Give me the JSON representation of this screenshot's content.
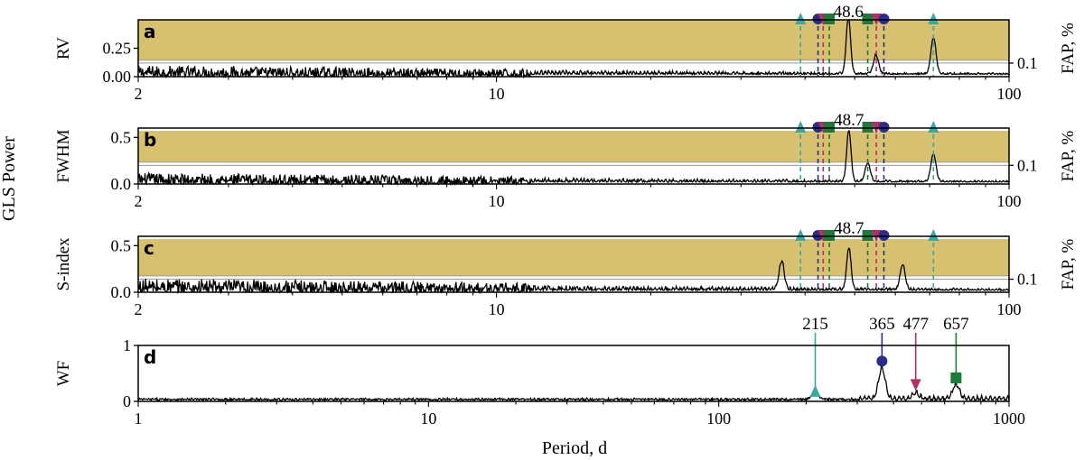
{
  "chart_data": {
    "type": "line",
    "xlabel": "Period, d",
    "ylabel_shared": "GLS Power",
    "colors": {
      "fap_band": "#d8c071",
      "fap_line": "#9a9a9a",
      "series": "#000000",
      "teal": "#3aa99e",
      "navy": "#2b2b8c",
      "crimson": "#b03163",
      "green": "#1e7a3a"
    },
    "marker_shapes": {
      "teal": "triangle-up",
      "navy": "circle",
      "crimson": "triangle-down",
      "green": "square"
    },
    "panels": [
      {
        "id": "a",
        "letter": "a",
        "ylabel": "RV",
        "xscale": "log",
        "xlim": [
          2,
          100
        ],
        "ylim": [
          0,
          0.5
        ],
        "yticks": [
          0.0,
          0.25
        ],
        "ytick_labels": [
          "0.00",
          "0.25"
        ],
        "xticks": [
          2,
          10,
          100
        ],
        "xtick_labels": [
          "2",
          "10",
          "100"
        ],
        "right_label": "FAP, %",
        "right_tick_label": "0.1",
        "fap_levels": [
          0.12,
          0.145
        ],
        "fap_band_top": 0.5,
        "peak_label": "48.6",
        "peak_period": 48.6,
        "peak_power": 0.5,
        "secondary_peaks": [
          {
            "period": 71.2,
            "power": 0.32
          },
          {
            "period": 55.0,
            "power": 0.16
          }
        ],
        "alias_lines": [
          {
            "color": "teal",
            "marker": "triangle-up",
            "period": 39.2
          },
          {
            "color": "navy",
            "marker": "circle",
            "period": 42.4
          },
          {
            "color": "crimson",
            "marker": "triangle-down",
            "period": 43.4
          },
          {
            "color": "green",
            "marker": "square",
            "period": 44.6
          },
          {
            "color": "green",
            "marker": "square",
            "period": 53.0
          },
          {
            "color": "crimson",
            "marker": "triangle-down",
            "period": 55.1
          },
          {
            "color": "navy",
            "marker": "circle",
            "period": 57.0
          },
          {
            "color": "teal",
            "marker": "triangle-up",
            "period": 71.2
          }
        ],
        "short_noise_level": 0.1
      },
      {
        "id": "b",
        "letter": "b",
        "ylabel": "FWHM",
        "xscale": "log",
        "xlim": [
          2,
          100
        ],
        "ylim": [
          0,
          0.6
        ],
        "yticks": [
          0.0,
          0.5
        ],
        "ytick_labels": [
          "0.0",
          "0.5"
        ],
        "xticks": [
          2,
          10,
          100
        ],
        "xtick_labels": [
          "2",
          "10",
          "100"
        ],
        "right_label": "FAP, %",
        "right_tick_label": "0.1",
        "fap_levels": [
          0.2,
          0.235
        ],
        "fap_band_top": 0.57,
        "peak_label": "48.7",
        "peak_period": 48.7,
        "peak_power": 0.55,
        "secondary_peaks": [
          {
            "period": 71.2,
            "power": 0.3
          },
          {
            "period": 53.0,
            "power": 0.2
          }
        ],
        "alias_lines": [
          {
            "color": "teal",
            "marker": "triangle-up",
            "period": 39.2
          },
          {
            "color": "navy",
            "marker": "circle",
            "period": 42.4
          },
          {
            "color": "crimson",
            "marker": "triangle-down",
            "period": 43.4
          },
          {
            "color": "green",
            "marker": "square",
            "period": 44.6
          },
          {
            "color": "green",
            "marker": "square",
            "period": 53.0
          },
          {
            "color": "crimson",
            "marker": "triangle-down",
            "period": 55.1
          },
          {
            "color": "navy",
            "marker": "circle",
            "period": 57.0
          },
          {
            "color": "teal",
            "marker": "triangle-up",
            "period": 71.2
          }
        ],
        "short_noise_level": 0.12
      },
      {
        "id": "c",
        "letter": "c",
        "ylabel": "S-index",
        "xscale": "log",
        "xlim": [
          2,
          100
        ],
        "ylim": [
          0,
          0.6
        ],
        "yticks": [
          0.0,
          0.5
        ],
        "ytick_labels": [
          "0.0",
          "0.5"
        ],
        "xticks": [
          2,
          10,
          100
        ],
        "xtick_labels": [
          "2",
          "10",
          "100"
        ],
        "right_label": "FAP, %",
        "right_tick_label": "0.1",
        "fap_levels": [
          0.14,
          0.175
        ],
        "fap_band_top": 0.57,
        "peak_label": "48.7",
        "peak_period": 48.7,
        "peak_power": 0.45,
        "secondary_peaks": [
          {
            "period": 36.0,
            "power": 0.3
          },
          {
            "period": 62.0,
            "power": 0.27
          }
        ],
        "alias_lines": [
          {
            "color": "teal",
            "marker": "triangle-up",
            "period": 39.2
          },
          {
            "color": "navy",
            "marker": "circle",
            "period": 42.4
          },
          {
            "color": "crimson",
            "marker": "triangle-down",
            "period": 43.4
          },
          {
            "color": "green",
            "marker": "square",
            "period": 44.6
          },
          {
            "color": "green",
            "marker": "square",
            "period": 53.0
          },
          {
            "color": "crimson",
            "marker": "triangle-down",
            "period": 55.1
          },
          {
            "color": "navy",
            "marker": "circle",
            "period": 57.0
          },
          {
            "color": "teal",
            "marker": "triangle-up",
            "period": 71.2
          }
        ],
        "short_noise_level": 0.15
      },
      {
        "id": "d",
        "letter": "d",
        "ylabel": "WF",
        "xscale": "log",
        "xlim": [
          1,
          1000
        ],
        "ylim": [
          0,
          1
        ],
        "yticks": [
          0,
          1
        ],
        "ytick_labels": [
          "0",
          "1"
        ],
        "xticks": [
          1,
          10,
          100,
          1000
        ],
        "xtick_labels": [
          "1",
          "10",
          "100",
          "1000"
        ],
        "peak_markers": [
          {
            "label": "215",
            "period": 215,
            "color": "teal",
            "marker": "triangle-up",
            "marker_power": 0.18
          },
          {
            "label": "365",
            "period": 365,
            "color": "navy",
            "marker": "circle",
            "marker_power": 0.72
          },
          {
            "label": "477",
            "period": 477,
            "color": "crimson",
            "marker": "triangle-down",
            "marker_power": 0.3
          },
          {
            "label": "657",
            "period": 657,
            "color": "green",
            "marker": "square",
            "marker_power": 0.42
          }
        ],
        "peaks": [
          {
            "period": 365,
            "power": 0.55
          },
          {
            "period": 657,
            "power": 0.25
          },
          {
            "period": 215,
            "power": 0.12
          },
          {
            "period": 477,
            "power": 0.1
          }
        ],
        "noise_level": 0.05
      }
    ]
  }
}
